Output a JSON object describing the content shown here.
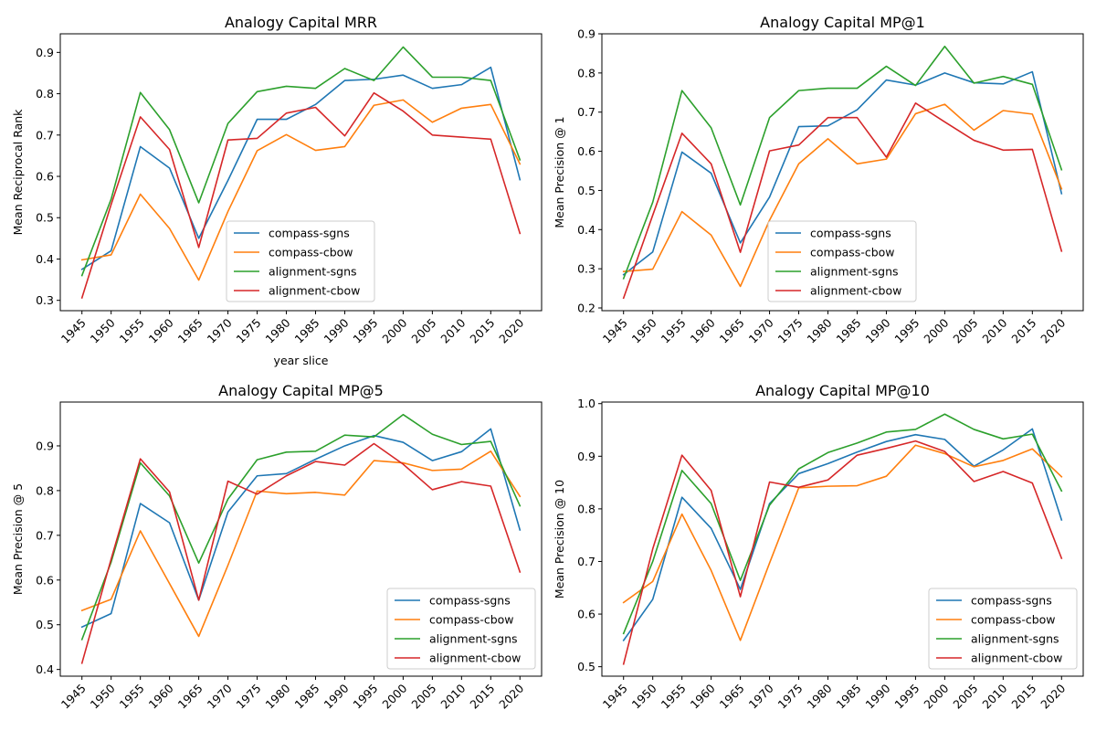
{
  "chart_data": [
    {
      "type": "line",
      "title": "Analogy Capital MRR",
      "xlabel": "year slice",
      "ylabel": "Mean Reciprocal Rank",
      "categories": [
        "1945",
        "1950",
        "1955",
        "1960",
        "1965",
        "1970",
        "1975",
        "1980",
        "1985",
        "1990",
        "1995",
        "2000",
        "2005",
        "2010",
        "2015",
        "2020"
      ],
      "ylim": [
        0.275,
        0.945
      ],
      "yticks": [
        0.3,
        0.4,
        0.5,
        0.6,
        0.7,
        0.8,
        0.9
      ],
      "legend": "lower center",
      "grid": false,
      "series": [
        {
          "name": "compass-sgns",
          "color": "#1f77b4",
          "values": [
            0.375,
            0.42,
            0.672,
            0.62,
            0.45,
            0.59,
            0.738,
            0.738,
            0.774,
            0.832,
            0.835,
            0.845,
            0.813,
            0.822,
            0.864,
            0.592
          ]
        },
        {
          "name": "compass-cbow",
          "color": "#ff7f0e",
          "values": [
            0.398,
            0.41,
            0.557,
            0.474,
            0.349,
            0.515,
            0.662,
            0.701,
            0.663,
            0.672,
            0.772,
            0.785,
            0.731,
            0.765,
            0.774,
            0.63
          ]
        },
        {
          "name": "alignment-sgns",
          "color": "#2ca02c",
          "values": [
            0.36,
            0.545,
            0.803,
            0.713,
            0.536,
            0.728,
            0.805,
            0.818,
            0.813,
            0.861,
            0.832,
            0.913,
            0.84,
            0.84,
            0.832,
            0.64
          ]
        },
        {
          "name": "alignment-cbow",
          "color": "#d62728",
          "values": [
            0.306,
            0.532,
            0.744,
            0.665,
            0.428,
            0.688,
            0.692,
            0.753,
            0.767,
            0.698,
            0.802,
            0.758,
            0.7,
            0.695,
            0.69,
            0.462
          ]
        }
      ]
    },
    {
      "type": "line",
      "title": "Analogy Capital MP@1",
      "xlabel": "",
      "ylabel": "Mean Precision @ 1",
      "categories": [
        "1945",
        "1950",
        "1955",
        "1960",
        "1965",
        "1970",
        "1975",
        "1980",
        "1985",
        "1990",
        "1995",
        "2000",
        "2005",
        "2010",
        "2015",
        "2020"
      ],
      "ylim": [
        0.193,
        0.9
      ],
      "yticks": [
        0.2,
        0.3,
        0.4,
        0.5,
        0.6,
        0.7,
        0.8,
        0.9
      ],
      "legend": "lower center",
      "grid": false,
      "series": [
        {
          "name": "compass-sgns",
          "color": "#1f77b4",
          "values": [
            0.285,
            0.343,
            0.598,
            0.544,
            0.366,
            0.483,
            0.663,
            0.665,
            0.706,
            0.782,
            0.769,
            0.8,
            0.775,
            0.772,
            0.803,
            0.492
          ]
        },
        {
          "name": "compass-cbow",
          "color": "#ff7f0e",
          "values": [
            0.293,
            0.299,
            0.446,
            0.386,
            0.255,
            0.424,
            0.568,
            0.632,
            0.568,
            0.58,
            0.696,
            0.72,
            0.654,
            0.704,
            0.695,
            0.504
          ]
        },
        {
          "name": "alignment-sgns",
          "color": "#2ca02c",
          "values": [
            0.275,
            0.47,
            0.755,
            0.66,
            0.463,
            0.686,
            0.755,
            0.761,
            0.761,
            0.817,
            0.768,
            0.868,
            0.774,
            0.791,
            0.771,
            0.553
          ]
        },
        {
          "name": "alignment-cbow",
          "color": "#d62728",
          "values": [
            0.225,
            0.437,
            0.646,
            0.568,
            0.342,
            0.601,
            0.616,
            0.686,
            0.686,
            0.585,
            0.723,
            0.675,
            0.628,
            0.603,
            0.605,
            0.345
          ]
        }
      ]
    },
    {
      "type": "line",
      "title": "Analogy Capital MP@5",
      "xlabel": "",
      "ylabel": "Mean Precision @ 5",
      "categories": [
        "1945",
        "1950",
        "1955",
        "1960",
        "1965",
        "1970",
        "1975",
        "1980",
        "1985",
        "1990",
        "1995",
        "2000",
        "2005",
        "2010",
        "2015",
        "2020"
      ],
      "ylim": [
        0.385,
        0.998
      ],
      "yticks": [
        0.4,
        0.5,
        0.6,
        0.7,
        0.8,
        0.9
      ],
      "legend": "lower right",
      "grid": false,
      "series": [
        {
          "name": "compass-sgns",
          "color": "#1f77b4",
          "values": [
            0.495,
            0.525,
            0.771,
            0.728,
            0.555,
            0.752,
            0.833,
            0.838,
            0.87,
            0.9,
            0.923,
            0.908,
            0.867,
            0.887,
            0.938,
            0.712
          ]
        },
        {
          "name": "compass-cbow",
          "color": "#ff7f0e",
          "values": [
            0.532,
            0.557,
            0.71,
            0.592,
            0.474,
            0.633,
            0.799,
            0.793,
            0.796,
            0.79,
            0.867,
            0.862,
            0.845,
            0.848,
            0.888,
            0.787
          ]
        },
        {
          "name": "alignment-sgns",
          "color": "#2ca02c",
          "values": [
            0.467,
            0.64,
            0.862,
            0.788,
            0.638,
            0.781,
            0.869,
            0.886,
            0.888,
            0.924,
            0.92,
            0.97,
            0.926,
            0.903,
            0.91,
            0.766
          ]
        },
        {
          "name": "alignment-cbow",
          "color": "#d62728",
          "values": [
            0.414,
            0.647,
            0.871,
            0.797,
            0.555,
            0.821,
            0.792,
            0.833,
            0.865,
            0.857,
            0.905,
            0.859,
            0.802,
            0.82,
            0.81,
            0.618
          ]
        }
      ]
    },
    {
      "type": "line",
      "title": "Analogy Capital MP@10",
      "xlabel": "",
      "ylabel": "Mean Precision @ 10",
      "categories": [
        "1945",
        "1950",
        "1955",
        "1960",
        "1965",
        "1970",
        "1975",
        "1980",
        "1985",
        "1990",
        "1995",
        "2000",
        "2005",
        "2010",
        "2015",
        "2020"
      ],
      "ylim": [
        0.482,
        1.003
      ],
      "yticks": [
        0.5,
        0.6,
        0.7,
        0.8,
        0.9,
        1.0
      ],
      "ytick_labels": [
        "0.5",
        "0.6",
        "0.7",
        "0.8",
        "0.9",
        "1.0"
      ],
      "legend": "lower right",
      "grid": false,
      "series": [
        {
          "name": "compass-sgns",
          "color": "#1f77b4",
          "values": [
            0.55,
            0.628,
            0.822,
            0.763,
            0.647,
            0.81,
            0.867,
            0.886,
            0.908,
            0.928,
            0.941,
            0.932,
            0.881,
            0.912,
            0.952,
            0.779
          ]
        },
        {
          "name": "compass-cbow",
          "color": "#ff7f0e",
          "values": [
            0.622,
            0.662,
            0.79,
            0.683,
            0.55,
            0.697,
            0.84,
            0.843,
            0.844,
            0.862,
            0.921,
            0.905,
            0.88,
            0.892,
            0.914,
            0.861
          ]
        },
        {
          "name": "alignment-sgns",
          "color": "#2ca02c",
          "values": [
            0.563,
            0.7,
            0.873,
            0.81,
            0.664,
            0.807,
            0.876,
            0.907,
            0.925,
            0.946,
            0.951,
            0.98,
            0.951,
            0.933,
            0.942,
            0.834
          ]
        },
        {
          "name": "alignment-cbow",
          "color": "#d62728",
          "values": [
            0.505,
            0.724,
            0.902,
            0.835,
            0.633,
            0.851,
            0.841,
            0.855,
            0.902,
            0.915,
            0.929,
            0.909,
            0.852,
            0.871,
            0.849,
            0.706
          ]
        }
      ]
    }
  ]
}
